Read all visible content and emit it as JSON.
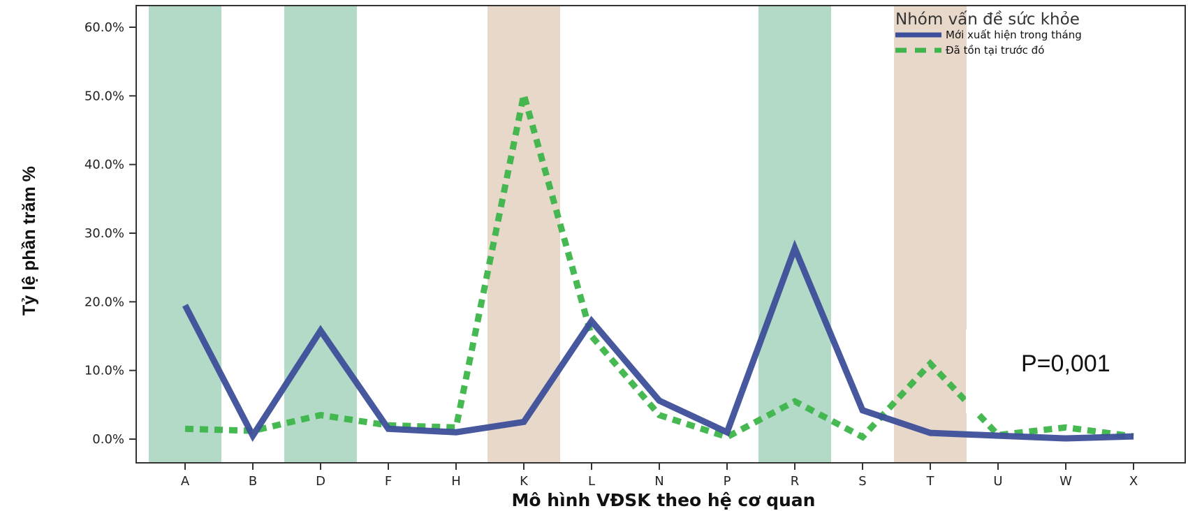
{
  "chart_data": {
    "type": "line",
    "title": "",
    "xlabel": "Mô hình VĐSK theo hệ cơ quan",
    "ylabel": "Tỷ lệ phần trăm %",
    "categories": [
      "A",
      "B",
      "D",
      "F",
      "H",
      "K",
      "L",
      "N",
      "P",
      "R",
      "S",
      "T",
      "U",
      "W",
      "X"
    ],
    "ylim": [
      0,
      60
    ],
    "yticks": [
      "0.0%",
      "10.0%",
      "20.0%",
      "30.0%",
      "40.0%",
      "50.0%",
      "60.0%"
    ],
    "legend": {
      "title": "Nhóm vấn đề sức khỏe",
      "position": "top-right"
    },
    "series": [
      {
        "name": "Mới xuất hiện trong tháng",
        "style": "solid",
        "color": "#3d4f9a",
        "values": [
          19.5,
          0.5,
          15.8,
          1.5,
          1.0,
          2.5,
          17.2,
          5.6,
          1.0,
          27.8,
          4.2,
          0.9,
          0.5,
          0.1,
          0.4
        ]
      },
      {
        "name": "Đã tồn tại trước đó",
        "style": "dashed",
        "color": "#3db54a",
        "values": [
          1.5,
          1.2,
          3.5,
          2.0,
          1.7,
          50.2,
          15.0,
          3.5,
          0.3,
          5.5,
          0.3,
          11.0,
          0.6,
          1.7,
          0.4
        ]
      }
    ],
    "highlight_bands": [
      {
        "category": "A",
        "color": "#b3d9c7"
      },
      {
        "category": "D",
        "color": "#b3d9c7"
      },
      {
        "category": "K",
        "color": "#e7d8c9"
      },
      {
        "category": "R",
        "color": "#b3d9c7"
      },
      {
        "category": "T",
        "color": "#e7d8c9"
      }
    ],
    "grid": false,
    "annotation": "P=0,001"
  }
}
